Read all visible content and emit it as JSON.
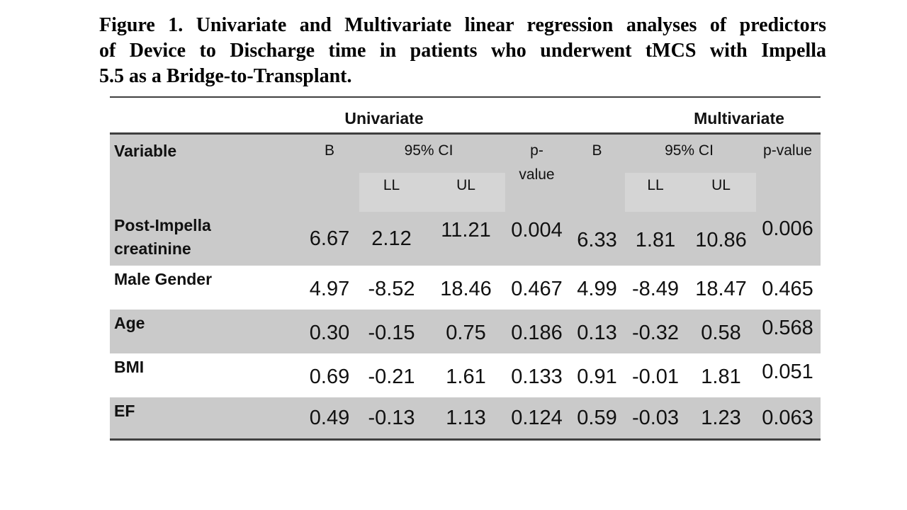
{
  "title_lines": [
    "Figure 1. Univariate and Multivariate linear regression analyses of predictors",
    "of Device to Discharge time in patients who underwent tMCS with Impella",
    "5.5 as a Bridge-to-Transplant."
  ],
  "table": {
    "group_headers": {
      "univariate": "Univariate",
      "multivariate": "Multivariate"
    },
    "header": {
      "variable": "Variable",
      "b_uni": "B",
      "ci_uni": "95% CI",
      "p_uni_line1": "p-",
      "p_uni_line2": "value",
      "b_multi": "B",
      "ci_multi": "95% CI",
      "p_multi": "p-value",
      "ll_uni": "LL",
      "ul_uni": "UL",
      "ll_multi": "LL",
      "ul_multi": "UL"
    },
    "rows": [
      {
        "label": "Post-Impella creatinine",
        "uni_b": "6.67",
        "uni_ll": "2.12",
        "uni_ul": "11.21",
        "uni_p": "0.004",
        "multi_b": "6.33",
        "multi_ll": "1.81",
        "multi_ul": "10.86",
        "multi_p": "0.006"
      },
      {
        "label": "Male Gender",
        "uni_b": "4.97",
        "uni_ll": "-8.52",
        "uni_ul": "18.46",
        "uni_p": "0.467",
        "multi_b": "4.99",
        "multi_ll": "-8.49",
        "multi_ul": "18.47",
        "multi_p": "0.465"
      },
      {
        "label": "Age",
        "uni_b": "0.30",
        "uni_ll": "-0.15",
        "uni_ul": "0.75",
        "uni_p": "0.186",
        "multi_b": "0.13",
        "multi_ll": "-0.32",
        "multi_ul": "0.58",
        "multi_p": "0.568"
      },
      {
        "label": "BMI",
        "uni_b": "0.69",
        "uni_ll": "-0.21",
        "uni_ul": "1.61",
        "uni_p": "0.133",
        "multi_b": "0.91",
        "multi_ll": "-0.01",
        "multi_ul": "1.81",
        "multi_p": "0.051"
      },
      {
        "label": "EF",
        "uni_b": "0.49",
        "uni_ll": "-0.13",
        "uni_ul": "1.13",
        "uni_p": "0.124",
        "multi_b": "0.59",
        "multi_ll": "-0.03",
        "multi_ul": "1.23",
        "multi_p": "0.063"
      }
    ],
    "colors": {
      "row_shade": "#cacaca",
      "subheader_shade": "#d5d5d5",
      "border": "#3f3f3f"
    }
  }
}
